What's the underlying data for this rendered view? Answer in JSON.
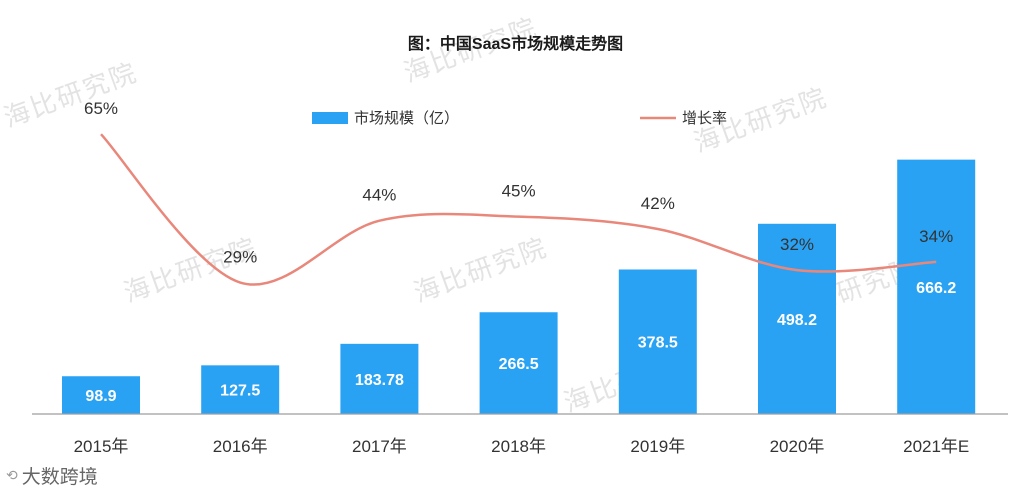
{
  "title": "图：中国SaaS市场规模走势图",
  "legend": {
    "bar_label": "市场规模（亿）",
    "line_label": "增长率"
  },
  "watermark_text": "海比研究院",
  "footer_logo_text": "大数跨境",
  "colors": {
    "bar": "#2aa2f4",
    "line": "#e8877a",
    "axis": "#9e9e9e",
    "bar_label": "#ffffff",
    "text": "#333333"
  },
  "chart_data": {
    "type": "bar",
    "categories": [
      "2015年",
      "2016年",
      "2017年",
      "2018年",
      "2019年",
      "2020年",
      "2021年E"
    ],
    "series": [
      {
        "name": "市场规模（亿）",
        "type": "bar",
        "values": [
          98.9,
          127.5,
          183.78,
          266.5,
          378.5,
          498.2,
          666.2
        ],
        "labels": [
          "98.9",
          "127.5",
          "183.78",
          "266.5",
          "378.5",
          "498.2",
          "666.2"
        ]
      },
      {
        "name": "增长率",
        "type": "line",
        "values": [
          65,
          29,
          44,
          45,
          42,
          32,
          34
        ],
        "labels": [
          "65%",
          "29%",
          "44%",
          "45%",
          "42%",
          "32%",
          "34%"
        ]
      }
    ],
    "ylim": [
      0,
      750
    ],
    "y2lim": [
      0,
      75
    ],
    "legend_position": "top",
    "grid": false
  }
}
